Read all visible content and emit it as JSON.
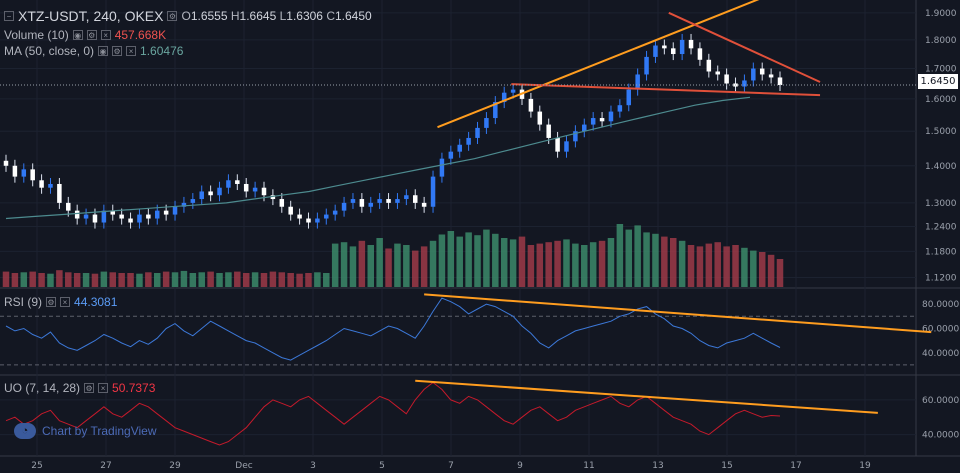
{
  "header": {
    "symbol": "XTZ-USDT, 240, OKEX",
    "ohlc": [
      {
        "k": "O",
        "v": "1.6555"
      },
      {
        "k": "H",
        "v": "1.6645"
      },
      {
        "k": "L",
        "v": "1.6306"
      },
      {
        "k": "C",
        "v": "1.6450"
      }
    ],
    "volume_label": "Volume (10)",
    "volume_value": "457.668K",
    "ma_label": "MA (50, close, 0)",
    "ma_value": "1.60476"
  },
  "rsi_pane": {
    "label": "RSI (9)",
    "value": "44.3081"
  },
  "uo_pane": {
    "label": "UO (7, 14, 28)",
    "value": "50.7373"
  },
  "last_price": "1.6450",
  "watermark": "Chart by TradingView",
  "colors": {
    "background": "#131722",
    "candle_up": "#3179f5",
    "candle_down": "#ffffff",
    "volume_up": "#3c8a6a",
    "volume_down": "#9e3a48",
    "ma_line": "#4d8b8f",
    "rsi_line": "#3c78d8",
    "uo_line": "#c41a2b",
    "trend_orange": "#ff9d1f",
    "trend_red": "#e0503a"
  },
  "chart_data": {
    "type": "candlestick",
    "x_ticks": [
      "25",
      "27",
      "29",
      "Dec",
      "3",
      "5",
      "7",
      "9",
      "11",
      "13",
      "15",
      "17",
      "19"
    ],
    "y_ticks": [
      "1.9000",
      "1.8000",
      "1.7000",
      "1.6000",
      "1.5000",
      "1.4000",
      "1.3000",
      "1.2400",
      "1.1800",
      "1.1200"
    ],
    "y_range": [
      1.11,
      1.93
    ],
    "y_scale": "log",
    "price_close": [
      1.4,
      1.37,
      1.39,
      1.36,
      1.34,
      1.35,
      1.3,
      1.28,
      1.26,
      1.27,
      1.25,
      1.28,
      1.27,
      1.26,
      1.25,
      1.27,
      1.26,
      1.28,
      1.27,
      1.29,
      1.3,
      1.31,
      1.33,
      1.32,
      1.34,
      1.36,
      1.35,
      1.33,
      1.34,
      1.32,
      1.31,
      1.29,
      1.27,
      1.26,
      1.25,
      1.26,
      1.27,
      1.28,
      1.3,
      1.31,
      1.29,
      1.3,
      1.31,
      1.3,
      1.31,
      1.32,
      1.3,
      1.29,
      1.37,
      1.42,
      1.44,
      1.46,
      1.48,
      1.51,
      1.54,
      1.59,
      1.62,
      1.63,
      1.6,
      1.56,
      1.52,
      1.48,
      1.44,
      1.47,
      1.5,
      1.52,
      1.54,
      1.53,
      1.56,
      1.58,
      1.63,
      1.68,
      1.74,
      1.78,
      1.77,
      1.75,
      1.8,
      1.77,
      1.73,
      1.69,
      1.68,
      1.65,
      1.64,
      1.66,
      1.7,
      1.68,
      1.67,
      1.645
    ],
    "volume_relative": [
      0.22,
      0.2,
      0.21,
      0.22,
      0.2,
      0.19,
      0.24,
      0.21,
      0.2,
      0.2,
      0.19,
      0.22,
      0.21,
      0.2,
      0.2,
      0.19,
      0.21,
      0.2,
      0.22,
      0.21,
      0.23,
      0.2,
      0.21,
      0.22,
      0.2,
      0.21,
      0.22,
      0.2,
      0.21,
      0.2,
      0.22,
      0.21,
      0.2,
      0.19,
      0.2,
      0.21,
      0.2,
      0.62,
      0.64,
      0.58,
      0.66,
      0.6,
      0.7,
      0.55,
      0.62,
      0.6,
      0.52,
      0.58,
      0.66,
      0.75,
      0.8,
      0.72,
      0.78,
      0.74,
      0.82,
      0.76,
      0.7,
      0.68,
      0.72,
      0.6,
      0.62,
      0.64,
      0.66,
      0.68,
      0.62,
      0.6,
      0.64,
      0.66,
      0.7,
      0.9,
      0.82,
      0.88,
      0.78,
      0.76,
      0.72,
      0.7,
      0.66,
      0.6,
      0.58,
      0.62,
      0.64,
      0.58,
      0.6,
      0.56,
      0.52,
      0.5,
      0.46,
      0.4
    ],
    "ma_50": [
      1.26,
      1.265,
      1.27,
      1.275,
      1.28,
      1.285,
      1.29,
      1.295,
      1.3,
      1.31,
      1.32,
      1.33,
      1.345,
      1.36,
      1.375,
      1.39,
      1.405,
      1.42,
      1.44,
      1.46,
      1.48,
      1.5,
      1.52,
      1.54,
      1.56,
      1.58,
      1.595,
      1.605
    ],
    "rsi": {
      "y_ticks": [
        "80.0000",
        "60.0000",
        "40.0000"
      ],
      "y_range": [
        25,
        90
      ],
      "levels": [
        70,
        30
      ],
      "values": [
        62,
        58,
        60,
        55,
        52,
        57,
        48,
        44,
        42,
        46,
        50,
        55,
        52,
        48,
        45,
        50,
        47,
        52,
        60,
        64,
        58,
        54,
        60,
        66,
        62,
        58,
        54,
        50,
        48,
        44,
        40,
        36,
        34,
        38,
        42,
        46,
        50,
        55,
        60,
        58,
        56,
        54,
        58,
        62,
        60,
        56,
        52,
        62,
        74,
        85,
        82,
        78,
        72,
        76,
        80,
        78,
        74,
        70,
        62,
        56,
        48,
        44,
        50,
        54,
        58,
        60,
        62,
        64,
        66,
        70,
        72,
        76,
        78,
        72,
        68,
        62,
        60,
        56,
        50,
        46,
        44,
        48,
        50,
        52,
        56,
        52,
        48,
        44.3
      ]
    },
    "uo": {
      "y_ticks": [
        "60.0000",
        "40.0000"
      ],
      "y_range": [
        30,
        72
      ],
      "values": [
        48,
        50,
        46,
        48,
        52,
        54,
        48,
        46,
        44,
        48,
        52,
        56,
        52,
        50,
        54,
        58,
        56,
        52,
        48,
        44,
        42,
        40,
        38,
        36,
        34,
        36,
        40,
        44,
        50,
        56,
        60,
        58,
        56,
        60,
        62,
        58,
        54,
        50,
        46,
        50,
        54,
        58,
        62,
        60,
        56,
        52,
        60,
        66,
        70,
        66,
        60,
        58,
        62,
        60,
        56,
        52,
        48,
        46,
        50,
        54,
        56,
        52,
        48,
        50,
        54,
        56,
        58,
        60,
        62,
        58,
        56,
        60,
        62,
        58,
        54,
        50,
        48,
        46,
        42,
        40,
        44,
        48,
        52,
        54,
        52,
        50,
        51,
        50.7
      ]
    }
  }
}
